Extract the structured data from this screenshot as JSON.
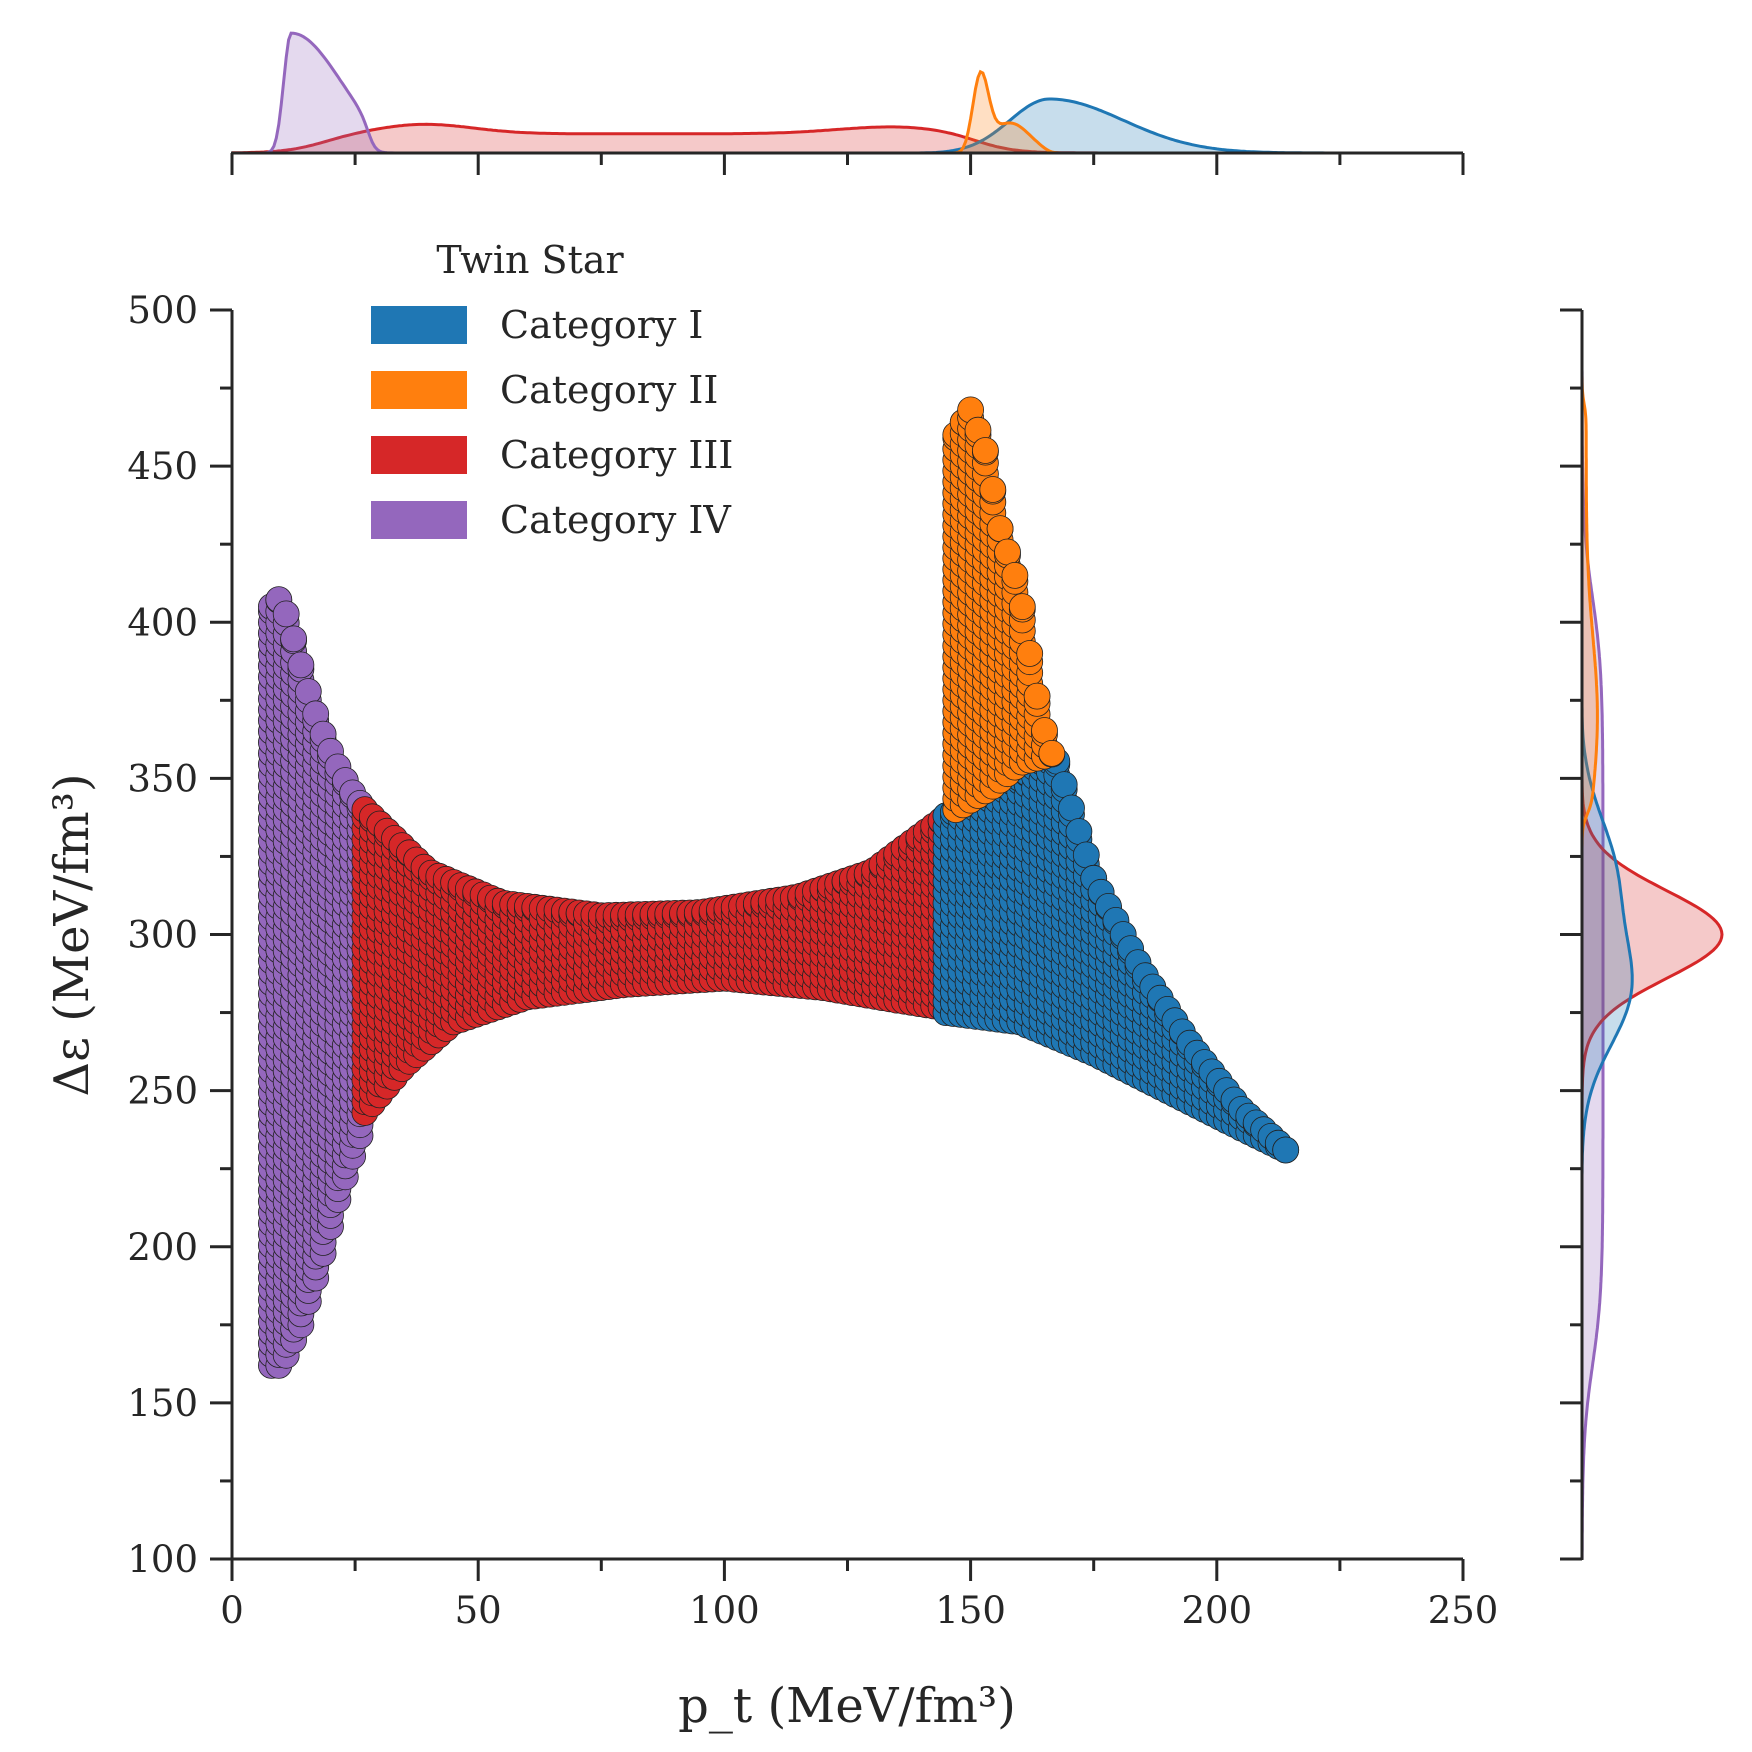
{
  "chart_data": {
    "type": "scatter",
    "title": "",
    "xlabel": "p_t (MeV/fm³)",
    "ylabel": "Δε (MeV/fm³)",
    "xlim": [
      0,
      250
    ],
    "ylim": [
      100,
      500
    ],
    "xticks": [
      "0",
      "50",
      "100",
      "150",
      "200",
      "250"
    ],
    "yticks": [
      "100",
      "150",
      "200",
      "250",
      "300",
      "350",
      "400",
      "450",
      "500"
    ],
    "grid": false,
    "legend": {
      "title": "Twin Star",
      "placement": "top-left"
    },
    "series": [
      {
        "name": "Category I",
        "color": "#1f77b4",
        "x_range": [
          145,
          214
        ],
        "upper_boundary": [
          [
            145,
            338
          ],
          [
            150,
            342
          ],
          [
            160,
            350
          ],
          [
            167,
            358
          ],
          [
            175,
            318
          ],
          [
            185,
            288
          ],
          [
            195,
            264
          ],
          [
            205,
            244
          ],
          [
            214,
            231
          ]
        ],
        "lower_boundary": [
          [
            145,
            275
          ],
          [
            160,
            272
          ],
          [
            175,
            262
          ],
          [
            190,
            250
          ],
          [
            205,
            238
          ],
          [
            214,
            231
          ]
        ]
      },
      {
        "name": "Category II",
        "color": "#ff7f0e",
        "x_range": [
          147,
          167
        ],
        "upper_boundary": [
          [
            147,
            460
          ],
          [
            150,
            468
          ],
          [
            153,
            455
          ],
          [
            156,
            430
          ],
          [
            160,
            410
          ],
          [
            163,
            380
          ],
          [
            166,
            358
          ]
        ],
        "lower_boundary": [
          [
            147,
            340
          ],
          [
            155,
            348
          ],
          [
            160,
            355
          ],
          [
            167,
            358
          ]
        ]
      },
      {
        "name": "Category III",
        "color": "#d62728",
        "x_range": [
          27,
          147
        ],
        "upper_boundary": [
          [
            27,
            340
          ],
          [
            40,
            320
          ],
          [
            55,
            310
          ],
          [
            75,
            306
          ],
          [
            95,
            307
          ],
          [
            115,
            312
          ],
          [
            130,
            320
          ],
          [
            147,
            340
          ]
        ],
        "lower_boundary": [
          [
            27,
            243
          ],
          [
            35,
            258
          ],
          [
            45,
            272
          ],
          [
            60,
            280
          ],
          [
            80,
            284
          ],
          [
            100,
            286
          ],
          [
            120,
            283
          ],
          [
            135,
            279
          ],
          [
            147,
            276
          ]
        ]
      },
      {
        "name": "Category IV",
        "color": "#9467bd",
        "x_range": [
          8,
          27
        ],
        "upper_boundary": [
          [
            8,
            405
          ],
          [
            10,
            408
          ],
          [
            13,
            392
          ],
          [
            16,
            375
          ],
          [
            19,
            362
          ],
          [
            22,
            352
          ],
          [
            25,
            344
          ],
          [
            27,
            340
          ]
        ],
        "lower_boundary": [
          [
            8,
            162
          ],
          [
            10,
            162
          ],
          [
            14,
            175
          ],
          [
            18,
            195
          ],
          [
            22,
            218
          ],
          [
            27,
            240
          ]
        ]
      }
    ],
    "marginal_x_density": {
      "Category I": {
        "range": [
          143,
          215
        ],
        "peak_x": 166
      },
      "Category II": {
        "range": [
          147,
          166
        ],
        "peak_x": 152
      },
      "Category III": {
        "range": [
          8,
          160
        ],
        "peak_x": 39,
        "shape": "broad plateau with second bump near 135"
      },
      "Category IV": {
        "range": [
          7,
          30
        ],
        "peak_x": 12
      }
    },
    "marginal_y_density": {
      "Category I": {
        "range": [
          230,
          362
        ],
        "peak_y": 282
      },
      "Category II": {
        "range": [
          340,
          470
        ],
        "peak_y": 370
      },
      "Category III": {
        "range": [
          243,
          340
        ],
        "peak_y": 300
      },
      "Category IV": {
        "range": [
          162,
          408
        ],
        "peak_y": 300,
        "shape": "nearly flat"
      }
    }
  }
}
